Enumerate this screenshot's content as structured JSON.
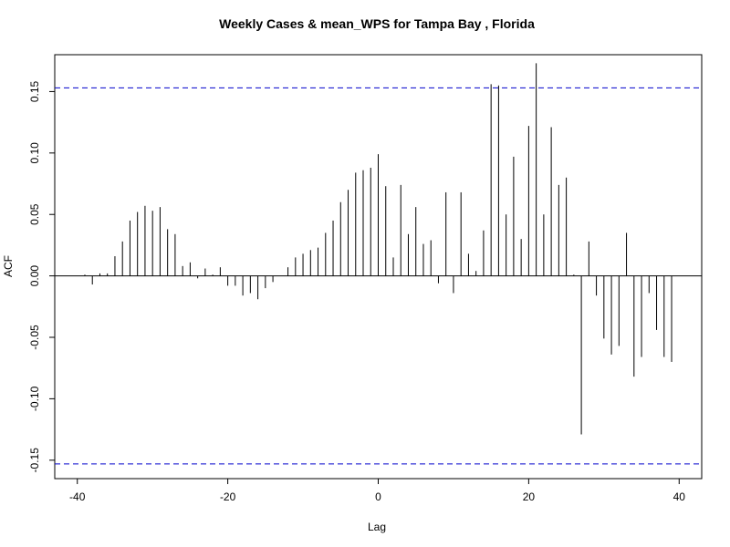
{
  "chart_data": {
    "type": "bar",
    "title": "Weekly Cases & mean_WPS for Tampa Bay , Florida",
    "xlabel": "Lag",
    "ylabel": "ACF",
    "xlim": [
      -43,
      43
    ],
    "ylim": [
      -0.165,
      0.18
    ],
    "xticks": [
      "-40",
      "-20",
      "0",
      "20",
      "40"
    ],
    "yticks": [
      "-0.15",
      "-0.10",
      "-0.05",
      "0.00",
      "0.05",
      "0.10",
      "0.15"
    ],
    "confidence_limit": 0.153,
    "confidence_color": "#0000cc",
    "bar_color": "#000000",
    "grid": false,
    "lags": [
      -39,
      -38,
      -37,
      -36,
      -35,
      -34,
      -33,
      -32,
      -31,
      -30,
      -29,
      -28,
      -27,
      -26,
      -25,
      -24,
      -23,
      -22,
      -21,
      -20,
      -19,
      -18,
      -17,
      -16,
      -15,
      -14,
      -13,
      -12,
      -11,
      -10,
      -9,
      -8,
      -7,
      -6,
      -5,
      -4,
      -3,
      -2,
      -1,
      0,
      1,
      2,
      3,
      4,
      5,
      6,
      7,
      8,
      9,
      10,
      11,
      12,
      13,
      14,
      15,
      16,
      17,
      18,
      19,
      20,
      21,
      22,
      23,
      24,
      25,
      26,
      27,
      28,
      29,
      30,
      31,
      32,
      33,
      34,
      35,
      36,
      37,
      38,
      39
    ],
    "values": [
      0.001,
      -0.007,
      0.002,
      0.002,
      0.016,
      0.028,
      0.045,
      0.052,
      0.057,
      0.053,
      0.056,
      0.038,
      0.034,
      0.008,
      0.011,
      -0.002,
      0.006,
      0.001,
      0.007,
      -0.008,
      -0.008,
      -0.016,
      -0.014,
      -0.019,
      -0.01,
      -0.005,
      0.0,
      0.007,
      0.015,
      0.018,
      0.021,
      0.023,
      0.035,
      0.045,
      0.06,
      0.07,
      0.084,
      0.086,
      0.088,
      0.099,
      0.073,
      0.015,
      0.074,
      0.034,
      0.056,
      0.026,
      0.029,
      -0.006,
      0.068,
      -0.014,
      0.068,
      0.018,
      0.004,
      0.037,
      0.156,
      0.155,
      0.05,
      0.097,
      0.03,
      0.122,
      0.173,
      0.05,
      0.121,
      0.074,
      0.08,
      0.001,
      -0.129,
      0.028,
      -0.016,
      -0.051,
      -0.064,
      -0.057,
      0.035,
      -0.082,
      -0.066,
      -0.014,
      -0.044,
      -0.066,
      -0.07
    ]
  }
}
